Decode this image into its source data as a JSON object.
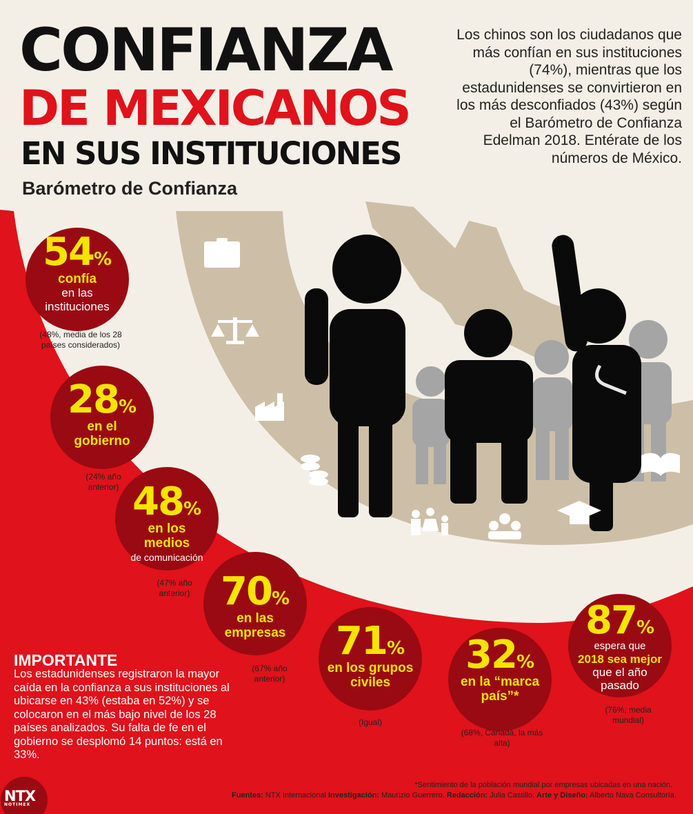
{
  "title": {
    "line1": "CONFIANZA",
    "line2": "DE MEXICANOS",
    "line3": "EN SUS INSTITUCIONES",
    "subtitle": "Barómetro de Confianza"
  },
  "intro": "Los chinos son los ciudadanos que más confían en sus instituciones (74%), mientras que los estadunidenses se convirtieron en los más desconfiados (43%) según el Barómetro de Confianza Edelman 2018. Entérate de los números de México.",
  "stats": [
    {
      "value": "54",
      "unit": "%",
      "highlight": "confía",
      "label": "en las instituciones",
      "note": "(48%, media de los 28 países considerados)"
    },
    {
      "value": "28",
      "unit": "%",
      "highlight": "en el gobierno",
      "label": "",
      "note": "(24% año anterior)"
    },
    {
      "value": "48",
      "unit": "%",
      "highlight": "en los medios",
      "label": "de comunicación",
      "note": "(47% año anterior)"
    },
    {
      "value": "70",
      "unit": "%",
      "highlight": "en las empresas",
      "label": "",
      "note": "(67% año anterior)"
    },
    {
      "value": "71",
      "unit": "%",
      "highlight": "en los grupos civiles",
      "label": "",
      "note": "(Igual)"
    },
    {
      "value": "32",
      "unit": "%",
      "highlight": "en la “marca país”*",
      "label": "",
      "note": "(68%, Canadá, la más alta)"
    },
    {
      "value": "87",
      "unit": "%",
      "highlight": "2018 sea mejor",
      "label_pre": "espera que",
      "label": "que el año pasado",
      "note": "(76%, media mundial)"
    }
  ],
  "important": {
    "title": "IMPORTANTE",
    "text": "Los estadunidenses registraron la mayor caída en la confianza a sus instituciones al ubicarse en 43% (estaba en 52%) y se colocaron en el más bajo nivel de los 28 países analizados. Su falta de fe en el gobierno se desplomó 14 puntos: está en 33%."
  },
  "footnote": "*Sentimiento de la población mundial por empresas ubicadas en una nación.",
  "credits": {
    "fuentes_label": "Fuentes:",
    "fuentes": "NTX Internacional",
    "investigacion_label": "Investigación:",
    "investigacion": "Maurizio Guerrero.",
    "redaccion_label": "Redacción:",
    "redaccion": "Julia Castillo.",
    "diseno_label": "Arte y Diseño:",
    "diseno": "Alberto Nava Consultoría."
  },
  "logo": {
    "name": "NTX",
    "sub": "NOTIMEX"
  },
  "colors": {
    "red": "#e0121b",
    "dark_red": "#9a0a12",
    "yellow": "#f7e400",
    "tan": "#cdbfa7",
    "cream": "#f4efe6"
  },
  "icons": [
    "id-card-icon",
    "scales-icon",
    "factory-icon",
    "coins-icon",
    "family-icon",
    "group-icon",
    "graduation-cap-icon",
    "book-icon",
    "mexico-map-icon",
    "people-silhouettes-icon"
  ]
}
